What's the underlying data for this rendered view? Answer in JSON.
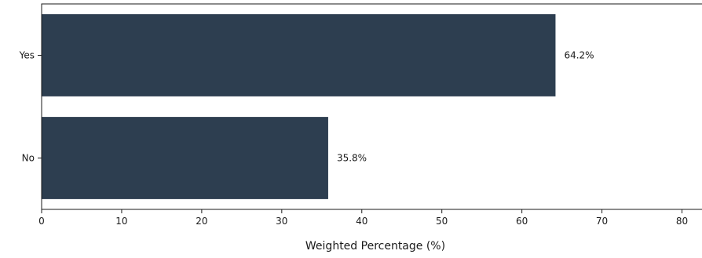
{
  "chart_data": {
    "type": "bar",
    "orientation": "horizontal",
    "categories": [
      "Yes",
      "No"
    ],
    "values": [
      64.2,
      35.8
    ],
    "data_labels": [
      "64.2%",
      "35.8%"
    ],
    "title": "",
    "xlabel": "Weighted Percentage (%)",
    "ylabel": "",
    "xlim": [
      0,
      82.5
    ],
    "x_ticks": [
      0,
      10,
      20,
      30,
      40,
      50,
      60,
      70,
      80
    ],
    "grid": false,
    "bar_color": "#2d3e50"
  }
}
